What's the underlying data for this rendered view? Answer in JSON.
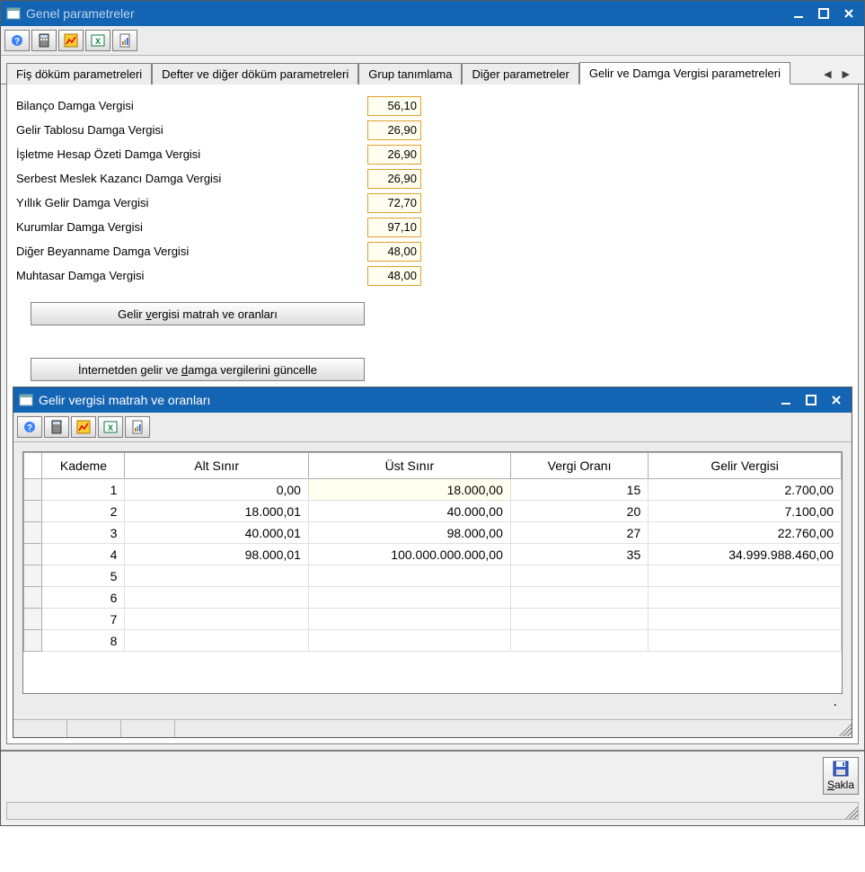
{
  "outer_window": {
    "title": "Genel parametreler"
  },
  "tabs": {
    "items": [
      {
        "label": "Fiş döküm parametreleri",
        "active": false
      },
      {
        "label": "Defter ve diğer döküm parametreleri",
        "active": false
      },
      {
        "label": "Grup tanımlama",
        "active": false
      },
      {
        "label": "Diğer parametreler",
        "active": false
      },
      {
        "label": "Gelir ve Damga Vergisi parametreleri",
        "active": true
      }
    ]
  },
  "form": {
    "rows": [
      {
        "label": "Bilanço Damga Vergisi",
        "value": "56,10"
      },
      {
        "label": "Gelir Tablosu Damga Vergisi",
        "value": "26,90"
      },
      {
        "label": "İşletme Hesap Özeti Damga Vergisi",
        "value": "26,90"
      },
      {
        "label": "Serbest Meslek Kazancı Damga Vergisi",
        "value": "26,90"
      },
      {
        "label": "Yıllık Gelir Damga Vergisi",
        "value": "72,70"
      },
      {
        "label": "Kurumlar Damga Vergisi",
        "value": "97,10"
      },
      {
        "label": "Diğer Beyanname Damga Vergisi",
        "value": "48,00"
      },
      {
        "label": "Muhtasar Damga Vergisi",
        "value": "48,00"
      }
    ]
  },
  "buttons": {
    "matrah_pre": "Gelir ",
    "matrah_u": "v",
    "matrah_post": "ergisi matrah ve oranları",
    "guncelle_pre": "İnternetden gelir ve ",
    "guncelle_u": "d",
    "guncelle_post": "amga vergilerini güncelle",
    "sakla_u": "S",
    "sakla_post": "akla"
  },
  "inner_window": {
    "title": "Gelir vergisi matrah ve oranları"
  },
  "grid": {
    "columns": [
      "Kademe",
      "Alt Sınır",
      "Üst Sınır",
      "Vergi Oranı",
      "Gelir Vergisi"
    ],
    "col_widths": [
      "90px",
      "200px",
      "220px",
      "150px",
      "210px"
    ],
    "highlight_cell": {
      "row": 0,
      "col": 2
    },
    "rows": [
      {
        "kademe": "1",
        "alt": "0,00",
        "ust": "18.000,00",
        "oran": "15",
        "vergi": "2.700,00"
      },
      {
        "kademe": "2",
        "alt": "18.000,01",
        "ust": "40.000,00",
        "oran": "20",
        "vergi": "7.100,00"
      },
      {
        "kademe": "3",
        "alt": "40.000,01",
        "ust": "98.000,00",
        "oran": "27",
        "vergi": "22.760,00"
      },
      {
        "kademe": "4",
        "alt": "98.000,01",
        "ust": "100.000.000.000,00",
        "oran": "35",
        "vergi": "34.999.988.460,00"
      },
      {
        "kademe": "5",
        "alt": "",
        "ust": "",
        "oran": "",
        "vergi": ""
      },
      {
        "kademe": "6",
        "alt": "",
        "ust": "",
        "oran": "",
        "vergi": ""
      },
      {
        "kademe": "7",
        "alt": "",
        "ust": "",
        "oran": "",
        "vergi": ""
      },
      {
        "kademe": "8",
        "alt": "",
        "ust": "",
        "oran": "",
        "vergi": ""
      }
    ]
  },
  "colors": {
    "titlebar": "#1464b4",
    "input_border": "#e0a030"
  }
}
